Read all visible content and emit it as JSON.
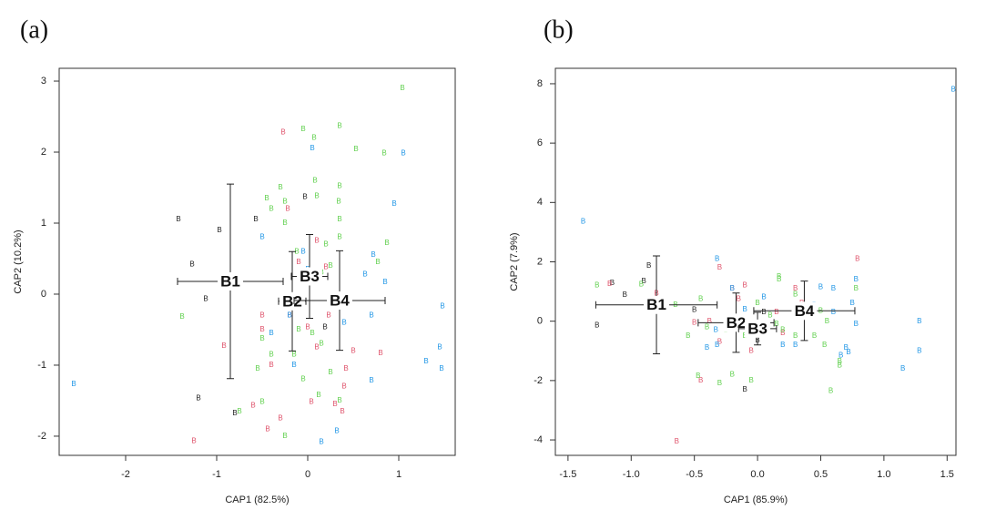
{
  "chart_data": [
    {
      "type": "scatter",
      "panel": "(a)",
      "xlabel": "CAP1 (82.5%)",
      "ylabel": "CAP2 (10.2%)",
      "marker": "B",
      "xlim": [
        -2.73,
        1.62
      ],
      "ylim": [
        -2.27,
        3.18
      ],
      "xticks": [
        -2,
        -1,
        0,
        1
      ],
      "yticks": [
        -2,
        -1,
        0,
        1,
        2,
        3
      ],
      "series": [
        {
          "color": "#222222",
          "x": [
            -1.42,
            -1.27,
            -1.12,
            -0.97,
            -0.57,
            -1.2,
            -0.8,
            -0.03,
            0.19
          ],
          "y": [
            1.05,
            0.42,
            -0.07,
            0.9,
            1.05,
            -1.47,
            -1.68,
            1.37,
            -0.47
          ]
        },
        {
          "color": "#df536b",
          "x": [
            -0.27,
            -0.92,
            -0.5,
            -0.5,
            -1.25,
            -0.6,
            -0.44,
            -0.3,
            0.23,
            0.5,
            0.4,
            0.42,
            0.1,
            0.8,
            0.04,
            0.3,
            0.38,
            -0.22,
            0.1,
            0.2,
            -0.2,
            0.0,
            -0.1,
            -0.4
          ],
          "y": [
            2.28,
            -0.73,
            -0.3,
            -0.5,
            -2.07,
            -1.57,
            -1.9,
            -1.75,
            -0.3,
            -0.8,
            -1.3,
            -1.05,
            -0.75,
            -0.83,
            -1.52,
            -1.55,
            -1.65,
            1.2,
            0.75,
            0.38,
            -0.3,
            -0.47,
            0.45,
            -1.0
          ]
        },
        {
          "color": "#61d04f",
          "x": [
            1.04,
            0.35,
            0.53,
            0.84,
            0.07,
            -0.05,
            0.08,
            -0.3,
            -0.45,
            -0.25,
            0.1,
            0.35,
            0.34,
            -0.4,
            -0.25,
            0.35,
            0.35,
            0.87,
            0.77,
            0.2,
            -0.12,
            0.25,
            0.15,
            -1.38,
            -0.5,
            -0.4,
            -0.1,
            0.05,
            0.15,
            0.25,
            -0.15,
            -0.55,
            -0.75,
            -0.25,
            0.12,
            0.35,
            -0.5,
            -0.05
          ],
          "y": [
            2.9,
            2.37,
            2.04,
            1.98,
            2.2,
            2.32,
            1.6,
            1.5,
            1.35,
            1.3,
            1.38,
            1.52,
            1.3,
            1.2,
            1.0,
            1.05,
            0.8,
            0.72,
            0.45,
            0.7,
            0.6,
            0.4,
            0.3,
            -0.32,
            -0.63,
            -0.85,
            -0.5,
            -0.55,
            -0.7,
            -1.1,
            -0.85,
            -1.05,
            -1.65,
            -2.0,
            -1.42,
            -1.5,
            -1.52,
            -1.2
          ]
        },
        {
          "color": "#2297e6",
          "x": [
            -2.57,
            0.05,
            1.05,
            0.95,
            -0.5,
            0.72,
            0.85,
            0.63,
            -0.4,
            0.7,
            0.4,
            1.48,
            1.45,
            1.3,
            1.47,
            0.7,
            0.32,
            0.15,
            -0.15,
            -0.2,
            -0.05,
            0.0
          ],
          "y": [
            -1.27,
            2.05,
            1.98,
            1.27,
            0.8,
            0.55,
            0.17,
            0.28,
            -0.55,
            -0.3,
            -0.4,
            -0.17,
            -0.75,
            -0.95,
            -1.05,
            -1.22,
            -1.93,
            -2.08,
            -1.0,
            -0.3,
            0.6,
            0.35
          ]
        }
      ],
      "centroids": [
        {
          "label": "B1",
          "x": -0.85,
          "y": 0.18,
          "xerr": 0.58,
          "yerr": 1.37
        },
        {
          "label": "B2",
          "x": -0.17,
          "y": -0.1,
          "xerr": 0.15,
          "yerr": 0.7
        },
        {
          "label": "B3",
          "x": 0.02,
          "y": 0.25,
          "xerr": 0.2,
          "yerr": 0.59
        },
        {
          "label": "B4",
          "x": 0.35,
          "y": -0.09,
          "xerr": 0.5,
          "yerr": 0.7
        }
      ]
    },
    {
      "type": "scatter",
      "panel": "(b)",
      "xlabel": "CAP1 (85.9%)",
      "ylabel": "CAP2 (7.9%)",
      "marker": "B",
      "xlim": [
        -1.6,
        1.57
      ],
      "ylim": [
        -4.52,
        8.52
      ],
      "xticks": [
        -1.5,
        {
          "value": -1,
          "label": "-1.0"
        },
        -0.5,
        {
          "value": 0,
          "label": "0.0"
        },
        0.5,
        {
          "value": 1,
          "label": "1.0"
        },
        1.5
      ],
      "yticks": [
        -4,
        -2,
        0,
        2,
        4,
        6,
        8
      ],
      "series": [
        {
          "color": "#222222",
          "x": [
            -1.15,
            -1.05,
            -0.9,
            -0.86,
            -1.27,
            -0.5,
            -0.1,
            0.05,
            0.0
          ],
          "y": [
            1.28,
            0.88,
            1.35,
            1.87,
            -0.15,
            0.38,
            -2.3,
            0.3,
            -0.65
          ]
        },
        {
          "color": "#df536b",
          "x": [
            -1.17,
            -0.8,
            -0.64,
            0.79,
            -0.3,
            -0.45,
            -0.1,
            -0.2,
            0.07,
            -0.05,
            0.2,
            -0.38,
            -0.5,
            0.3,
            -0.3,
            -0.15,
            0.35,
            0.15
          ],
          "y": [
            1.25,
            0.93,
            -4.05,
            2.1,
            1.8,
            -2.0,
            1.2,
            1.1,
            -0.2,
            -1.0,
            -0.4,
            0.0,
            -0.05,
            1.1,
            -0.7,
            0.75,
            0.6,
            0.3
          ]
        },
        {
          "color": "#61d04f",
          "x": [
            -1.27,
            -0.92,
            -0.65,
            -0.45,
            -0.55,
            -0.47,
            -0.3,
            -0.2,
            -0.05,
            0.17,
            0.17,
            0.3,
            0.0,
            0.1,
            0.2,
            0.3,
            0.45,
            0.55,
            0.53,
            0.65,
            0.65,
            0.58,
            0.78,
            0.5,
            -0.1,
            -0.25,
            0.0,
            -0.4,
            0.15
          ],
          "y": [
            1.2,
            1.23,
            0.55,
            0.75,
            -0.5,
            -1.85,
            -2.1,
            -1.8,
            -2.0,
            1.4,
            1.5,
            0.9,
            0.6,
            0.2,
            -0.3,
            -0.5,
            -0.5,
            0.0,
            -0.8,
            -1.35,
            -1.5,
            -2.35,
            1.1,
            0.35,
            -0.5,
            -0.3,
            -0.1,
            -0.2,
            -0.1
          ]
        },
        {
          "color": "#2297e6",
          "x": [
            1.55,
            -1.38,
            -0.32,
            -0.2,
            0.05,
            0.5,
            0.6,
            0.78,
            0.75,
            0.78,
            1.28,
            1.28,
            1.15,
            0.7,
            0.72,
            0.66,
            0.3,
            0.2,
            -0.33,
            -0.1,
            -0.4,
            -0.32,
            0.6,
            0.45
          ],
          "y": [
            7.8,
            3.35,
            2.1,
            1.1,
            0.8,
            1.15,
            1.1,
            1.4,
            0.6,
            -0.1,
            0.0,
            -1.0,
            -1.6,
            -0.9,
            -1.05,
            -1.15,
            -0.8,
            -0.8,
            -0.3,
            0.4,
            -0.9,
            -0.8,
            0.3,
            0.55
          ]
        }
      ],
      "centroids": [
        {
          "label": "B1",
          "x": -0.8,
          "y": 0.55,
          "xerr": 0.48,
          "yerr": 1.65
        },
        {
          "label": "B2",
          "x": -0.17,
          "y": -0.05,
          "xerr": 0.3,
          "yerr": 1.0
        },
        {
          "label": "B3",
          "x": 0.0,
          "y": -0.25,
          "xerr": 0.15,
          "yerr": 0.55
        },
        {
          "label": "B4",
          "x": 0.37,
          "y": 0.35,
          "xerr": 0.4,
          "yerr": 1.0
        }
      ]
    }
  ]
}
